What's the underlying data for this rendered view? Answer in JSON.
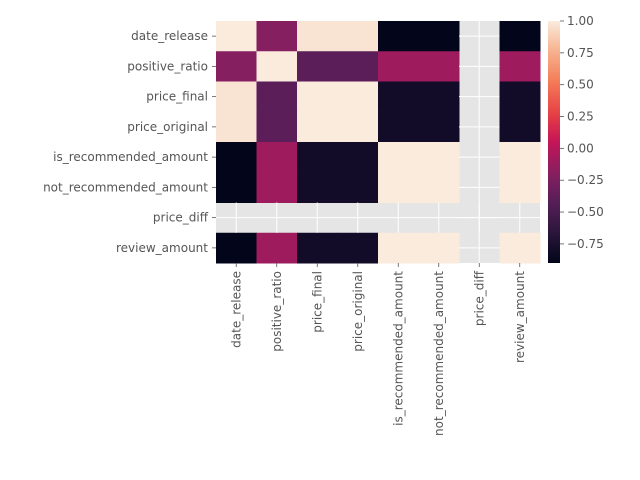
{
  "chart_data": {
    "type": "heatmap",
    "title": "",
    "xlabel": "",
    "ylabel": "",
    "x_labels": [
      "date_release",
      "positive_ratio",
      "price_final",
      "price_original",
      "is_recommended_amount",
      "not_recommended_amount",
      "price_diff",
      "review_amount"
    ],
    "y_labels": [
      "date_release",
      "positive_ratio",
      "price_final",
      "price_original",
      "is_recommended_amount",
      "not_recommended_amount",
      "price_diff",
      "review_amount"
    ],
    "values": [
      [
        1.0,
        -0.2,
        0.97,
        0.97,
        -0.9,
        -0.9,
        null,
        -0.9
      ],
      [
        -0.2,
        1.0,
        -0.4,
        -0.4,
        -0.1,
        -0.1,
        null,
        -0.1
      ],
      [
        0.97,
        -0.4,
        1.0,
        1.0,
        -0.8,
        -0.8,
        null,
        -0.8
      ],
      [
        0.97,
        -0.4,
        1.0,
        1.0,
        -0.8,
        -0.8,
        null,
        -0.8
      ],
      [
        -0.9,
        -0.1,
        -0.8,
        -0.8,
        1.0,
        1.0,
        null,
        1.0
      ],
      [
        -0.9,
        -0.1,
        -0.8,
        -0.8,
        1.0,
        1.0,
        null,
        1.0
      ],
      [
        null,
        null,
        null,
        null,
        null,
        null,
        null,
        null
      ],
      [
        -0.9,
        -0.1,
        -0.8,
        -0.8,
        1.0,
        1.0,
        null,
        1.0
      ]
    ],
    "colorbar": {
      "vmin": -0.9,
      "vmax": 1.0,
      "ticks": [
        "1.00",
        "0.75",
        "0.50",
        "0.25",
        "0.00",
        "−0.25",
        "−0.50",
        "−0.75"
      ],
      "tick_values": [
        1.0,
        0.75,
        0.5,
        0.25,
        0.0,
        -0.25,
        -0.5,
        -0.75
      ],
      "colormap": "rocket"
    },
    "background_color": "#e5e5e5",
    "grid": true
  }
}
